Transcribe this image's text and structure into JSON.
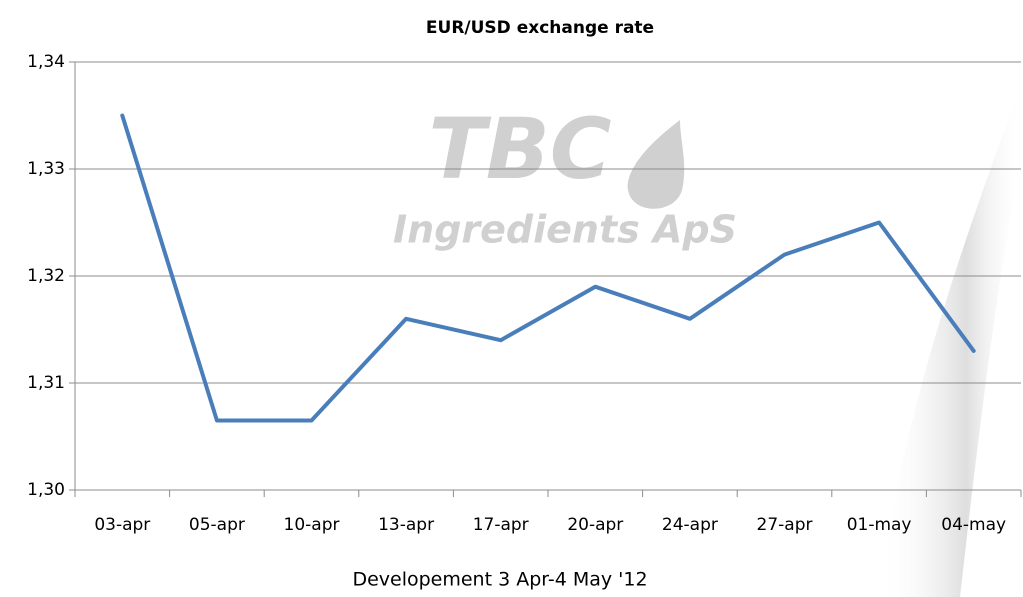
{
  "chart_data": {
    "type": "line",
    "title": "EUR/USD exchange rate",
    "x_label": "Developement 3 Apr-4 May '12",
    "watermark": [
      "TBC",
      "Ingredients ApS"
    ],
    "categories": [
      "03-apr",
      "05-apr",
      "10-apr",
      "13-apr",
      "17-apr",
      "20-apr",
      "24-apr",
      "27-apr",
      "01-may",
      "04-may"
    ],
    "values": [
      1.335,
      1.3065,
      1.3065,
      1.316,
      1.314,
      1.319,
      1.316,
      1.322,
      1.325,
      1.313
    ],
    "color": "#4a7ebb",
    "ylim": [
      1.3,
      1.34
    ],
    "yticks": [
      {
        "value": 1.3,
        "label": "1,30"
      },
      {
        "value": 1.31,
        "label": "1,31"
      },
      {
        "value": 1.32,
        "label": "1,32"
      },
      {
        "value": 1.33,
        "label": "1,33"
      },
      {
        "value": 1.34,
        "label": "1,34"
      }
    ],
    "grid": true
  }
}
